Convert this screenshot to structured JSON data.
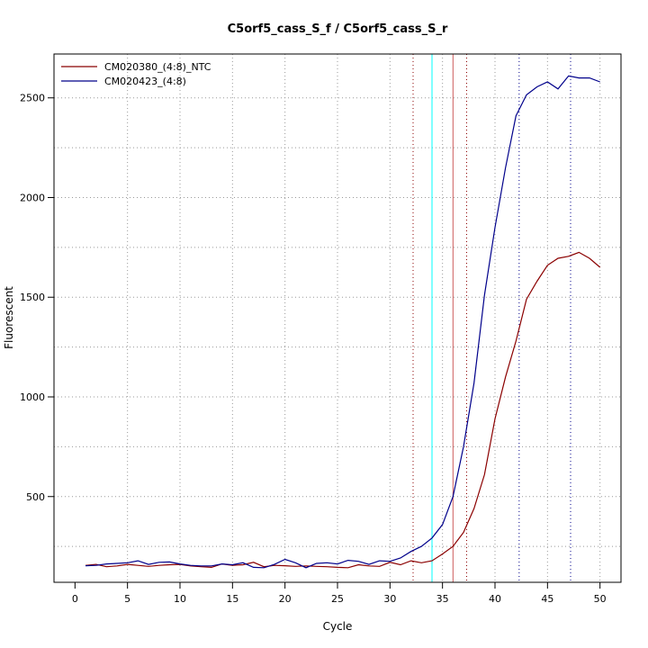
{
  "chart_data": {
    "type": "line",
    "title": "C5orf5_cass_S_f / C5orf5_cass_S_r",
    "xlabel": "Cycle",
    "ylabel": "Fluorescent",
    "xlim": [
      -2,
      52
    ],
    "ylim": [
      70,
      2720
    ],
    "xticks": [
      0,
      5,
      10,
      15,
      20,
      25,
      30,
      35,
      40,
      45,
      50
    ],
    "yticks": [
      500,
      1000,
      1500,
      2000,
      2500
    ],
    "grid": "dotted, x every 5 cycles, y every 250",
    "legend_position": "top-left",
    "x": [
      1,
      2,
      3,
      4,
      5,
      6,
      7,
      8,
      9,
      10,
      11,
      12,
      13,
      14,
      15,
      16,
      17,
      18,
      19,
      20,
      21,
      22,
      23,
      24,
      25,
      26,
      27,
      28,
      29,
      30,
      31,
      32,
      33,
      34,
      35,
      36,
      37,
      38,
      39,
      40,
      41,
      42,
      43,
      44,
      45,
      46,
      47,
      48,
      49,
      50
    ],
    "series": [
      {
        "name": "CM020380_(4:8)_NTC",
        "color": "#8b0000",
        "values": [
          155,
          160,
          148,
          152,
          160,
          155,
          150,
          155,
          158,
          160,
          152,
          148,
          145,
          162,
          155,
          158,
          170,
          148,
          155,
          153,
          150,
          152,
          150,
          148,
          145,
          143,
          158,
          152,
          150,
          170,
          158,
          178,
          168,
          178,
          212,
          250,
          320,
          440,
          610,
          890,
          1100,
          1280,
          1490,
          1580,
          1660,
          1695,
          1705,
          1725,
          1695,
          1650
        ]
      },
      {
        "name": "CM020423_(4:8)",
        "color": "#00008b",
        "values": [
          153,
          155,
          162,
          165,
          168,
          178,
          160,
          170,
          172,
          162,
          155,
          152,
          152,
          162,
          158,
          168,
          145,
          143,
          160,
          185,
          168,
          143,
          165,
          168,
          162,
          180,
          175,
          160,
          178,
          175,
          192,
          225,
          250,
          292,
          360,
          500,
          750,
          1070,
          1510,
          1850,
          2150,
          2410,
          2515,
          2555,
          2580,
          2545,
          2610,
          2600,
          2600,
          2580
        ]
      }
    ],
    "vertical_lines": [
      {
        "x": 34,
        "color": "#00ffff",
        "style": "solid"
      },
      {
        "x": 36,
        "color": "#cd5c5c",
        "style": "solid"
      },
      {
        "x": 37.3,
        "color": "#8b0000",
        "style": "dotted"
      },
      {
        "x": 42.3,
        "color": "#00008b",
        "style": "dotted"
      },
      {
        "x": 47.2,
        "color": "#00008b",
        "style": "dotted"
      },
      {
        "x": 32.2,
        "color": "#8b0000",
        "style": "dotted"
      }
    ]
  }
}
